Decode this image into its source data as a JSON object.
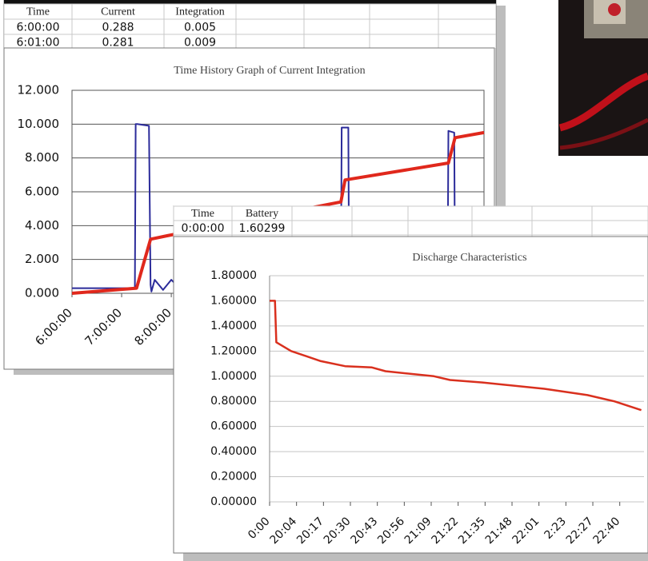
{
  "window_1": {
    "table": {
      "header": [
        "Time",
        "Current",
        "Integration"
      ],
      "rows": [
        [
          "6:00:00",
          "0.288",
          "0.005"
        ],
        [
          "6:01:00",
          "0.281",
          "0.009"
        ]
      ]
    }
  },
  "window_2": {
    "table": {
      "header": [
        "Time",
        "Battery"
      ],
      "rows": [
        [
          "0:00:00",
          "1.60299"
        ]
      ]
    }
  },
  "chart_data": [
    {
      "type": "line",
      "title": "Time History Graph of Current Integration",
      "xlim": [
        0,
        498
      ],
      "xticks": [
        {
          "value": 0,
          "label": "6:00:00"
        },
        {
          "value": 60,
          "label": "7:00:00"
        },
        {
          "value": 120,
          "label": "8:00:00"
        }
      ],
      "ylim": [
        0,
        12
      ],
      "yticks": [
        {
          "value": 0,
          "label": "0.000"
        },
        {
          "value": 2,
          "label": "2.000"
        },
        {
          "value": 4,
          "label": "4.000"
        },
        {
          "value": 6,
          "label": "6.000"
        },
        {
          "value": 8,
          "label": "8.000"
        },
        {
          "value": 10,
          "label": "10.000"
        },
        {
          "value": 12,
          "label": "12.000"
        }
      ],
      "grid": true,
      "series": [
        {
          "color": "#2b2b9a",
          "x": [
            0,
            76,
            77,
            79,
            93,
            95,
            96,
            100,
            110,
            120,
            130,
            140,
            180,
            325,
            326,
            334,
            335,
            454,
            455,
            462,
            463,
            498
          ],
          "values": [
            0.3,
            0.3,
            10,
            10,
            9.9,
            0.5,
            0.1,
            0.8,
            0.2,
            0.8,
            0.3,
            0.5,
            0.4,
            0.4,
            9.8,
            9.8,
            0.4,
            0.4,
            9.6,
            9.5,
            0.4,
            0.4
          ]
        },
        {
          "color": "#e0281c",
          "x": [
            0,
            78,
            85,
            95,
            115,
            325,
            330,
            455,
            463,
            498
          ],
          "values": [
            0,
            0.3,
            1.5,
            3.2,
            3.4,
            5.4,
            6.7,
            7.7,
            9.2,
            9.5
          ]
        }
      ]
    },
    {
      "type": "line",
      "title": "Discharge Characteristics",
      "xlim": [
        0,
        13.9
      ],
      "xticks": [
        {
          "value": 0,
          "label": "0:00"
        },
        {
          "value": 1,
          "label": "20:04"
        },
        {
          "value": 2,
          "label": "20:17"
        },
        {
          "value": 3,
          "label": "20:30"
        },
        {
          "value": 4,
          "label": "20:43"
        },
        {
          "value": 5,
          "label": "20:56"
        },
        {
          "value": 6,
          "label": "21:09"
        },
        {
          "value": 7,
          "label": "21:22"
        },
        {
          "value": 8,
          "label": "21:35"
        },
        {
          "value": 9,
          "label": "21:48"
        },
        {
          "value": 10,
          "label": "22:01"
        },
        {
          "value": 11,
          "label": "2:23"
        },
        {
          "value": 12,
          "label": "22:27"
        },
        {
          "value": 13,
          "label": "22:40"
        }
      ],
      "ylim": [
        0,
        1.8
      ],
      "yticks": [
        {
          "value": 0,
          "label": "0.00000"
        },
        {
          "value": 0.2,
          "label": "0.20000"
        },
        {
          "value": 0.4,
          "label": "0.40000"
        },
        {
          "value": 0.6,
          "label": "0.60000"
        },
        {
          "value": 0.8,
          "label": "0.80000"
        },
        {
          "value": 1,
          "label": "1.00000"
        },
        {
          "value": 1.2,
          "label": "1.20000"
        },
        {
          "value": 1.4,
          "label": "1.40000"
        },
        {
          "value": 1.6,
          "label": "1.60000"
        },
        {
          "value": 1.8,
          "label": "1.80000"
        }
      ],
      "grid": true,
      "series": [
        {
          "color": "#d9301e",
          "x": [
            0,
            0.2,
            0.25,
            0.8,
            1.9,
            2.8,
            3.8,
            4.3,
            6.1,
            6.7,
            7.9,
            10.2,
            11.8,
            12.8,
            13.8
          ],
          "values": [
            1.6,
            1.6,
            1.27,
            1.2,
            1.12,
            1.08,
            1.07,
            1.04,
            1.0,
            0.97,
            0.95,
            0.9,
            0.85,
            0.8,
            0.73
          ]
        }
      ]
    }
  ]
}
